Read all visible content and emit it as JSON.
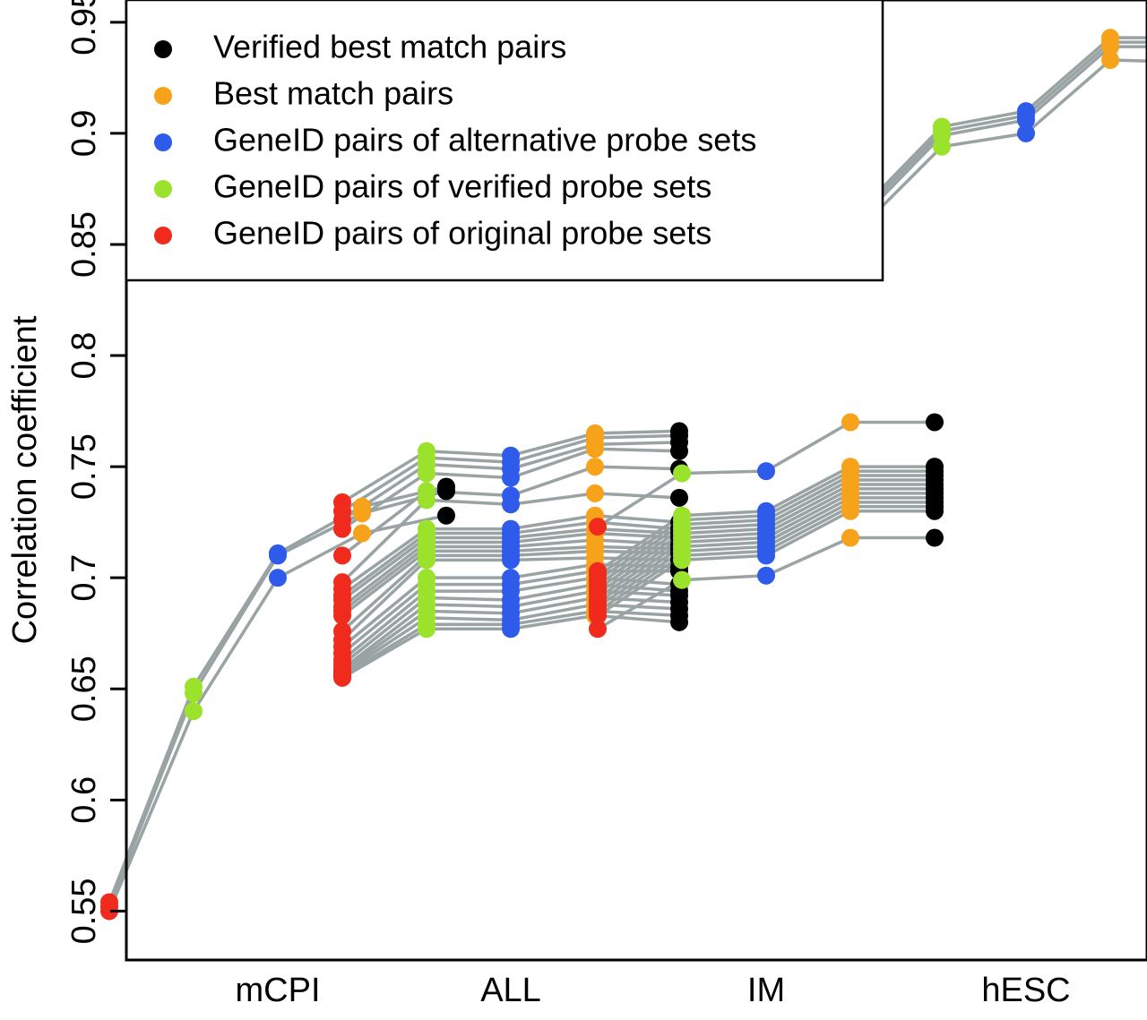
{
  "chart_data": {
    "type": "line",
    "ylabel": "Correlation coefficient",
    "xlabel": "",
    "ylim": [
      0.528,
      0.96
    ],
    "yticks": [
      0.55,
      0.6,
      0.65,
      0.7,
      0.75,
      0.8,
      0.85,
      0.9,
      0.95
    ],
    "ytick_labels": [
      "0.55",
      "0.6",
      "0.65",
      "0.7",
      "0.75",
      "0.8",
      "0.85",
      "0.9",
      "0.95"
    ],
    "categories": [
      "mCPI",
      "ALL",
      "IM",
      "hESC"
    ],
    "legend": {
      "placement": "top-left",
      "entries": [
        {
          "label": "Verified best match pairs",
          "color": "#000000"
        },
        {
          "label": "Best match pairs",
          "color": "#f7a21b"
        },
        {
          "label": "GeneID pairs of alternative probe sets",
          "color": "#2f5bea"
        },
        {
          "label": "GeneID pairs of verified probe sets",
          "color": "#9be22d"
        },
        {
          "label": "GeneID pairs of original probe sets",
          "color": "#f02b1d"
        }
      ]
    },
    "point_order": [
      "GeneID pairs of original probe sets",
      "GeneID pairs of verified probe sets",
      "GeneID pairs of alternative probe sets",
      "Best match pairs",
      "Verified best match pairs"
    ],
    "point_colors": [
      "#f02b1d",
      "#9be22d",
      "#2f5bea",
      "#f7a21b",
      "#000000"
    ],
    "line_color": "#9aa3a3",
    "groups": [
      {
        "category": "mCPI",
        "series": [
          [
            0.554,
            0.651,
            0.711,
            0.732,
            0.741
          ],
          [
            0.552,
            0.648,
            0.71,
            0.729,
            0.739
          ],
          [
            0.55,
            0.64,
            0.7,
            0.72,
            0.728
          ]
        ]
      },
      {
        "category": "ALL",
        "series": [
          [
            0.734,
            0.757,
            0.755,
            0.765,
            0.766
          ],
          [
            0.73,
            0.754,
            0.752,
            0.763,
            0.764
          ],
          [
            0.726,
            0.751,
            0.749,
            0.76,
            0.761
          ],
          [
            0.722,
            0.747,
            0.745,
            0.758,
            0.757
          ],
          [
            0.71,
            0.739,
            0.737,
            0.75,
            0.749
          ],
          [
            0.698,
            0.735,
            0.733,
            0.738,
            0.736
          ],
          [
            0.695,
            0.722,
            0.722,
            0.728,
            0.725
          ],
          [
            0.692,
            0.72,
            0.72,
            0.725,
            0.722
          ],
          [
            0.69,
            0.718,
            0.718,
            0.722,
            0.72
          ],
          [
            0.687,
            0.716,
            0.716,
            0.72,
            0.718
          ],
          [
            0.685,
            0.714,
            0.714,
            0.717,
            0.715
          ],
          [
            0.683,
            0.712,
            0.712,
            0.714,
            0.713
          ],
          [
            0.676,
            0.71,
            0.71,
            0.712,
            0.711
          ],
          [
            0.672,
            0.708,
            0.708,
            0.709,
            0.708
          ],
          [
            0.669,
            0.7,
            0.7,
            0.706,
            0.705
          ],
          [
            0.666,
            0.697,
            0.697,
            0.703,
            0.703
          ],
          [
            0.663,
            0.694,
            0.694,
            0.7,
            0.697
          ],
          [
            0.661,
            0.691,
            0.69,
            0.697,
            0.694
          ],
          [
            0.659,
            0.688,
            0.687,
            0.694,
            0.692
          ],
          [
            0.658,
            0.685,
            0.684,
            0.691,
            0.689
          ],
          [
            0.657,
            0.682,
            0.681,
            0.688,
            0.686
          ],
          [
            0.656,
            0.679,
            0.679,
            0.685,
            0.683
          ],
          [
            0.655,
            0.677,
            0.677,
            0.683,
            0.68
          ]
        ]
      },
      {
        "category": "IM",
        "series": [
          [
            0.723,
            0.747,
            0.748,
            0.77,
            0.77
          ],
          [
            0.703,
            0.728,
            0.73,
            0.75,
            0.75
          ],
          [
            0.701,
            0.726,
            0.728,
            0.748,
            0.748
          ],
          [
            0.699,
            0.724,
            0.726,
            0.746,
            0.746
          ],
          [
            0.697,
            0.722,
            0.724,
            0.744,
            0.744
          ],
          [
            0.695,
            0.72,
            0.722,
            0.742,
            0.742
          ],
          [
            0.693,
            0.718,
            0.72,
            0.74,
            0.74
          ],
          [
            0.691,
            0.716,
            0.718,
            0.738,
            0.738
          ],
          [
            0.689,
            0.714,
            0.716,
            0.736,
            0.736
          ],
          [
            0.687,
            0.712,
            0.714,
            0.734,
            0.734
          ],
          [
            0.685,
            0.71,
            0.712,
            0.732,
            0.732
          ],
          [
            0.683,
            0.708,
            0.71,
            0.73,
            0.73
          ],
          [
            0.677,
            0.699,
            0.701,
            0.718,
            0.718
          ]
        ]
      },
      {
        "category": "hESC",
        "series": [
          [
            0.864,
            0.903,
            0.91,
            0.943,
            0.943
          ],
          [
            0.862,
            0.901,
            0.908,
            0.941,
            0.941
          ],
          [
            0.86,
            0.899,
            0.906,
            0.939,
            0.939
          ],
          [
            0.856,
            0.894,
            0.9,
            0.933,
            0.932
          ]
        ]
      }
    ]
  }
}
